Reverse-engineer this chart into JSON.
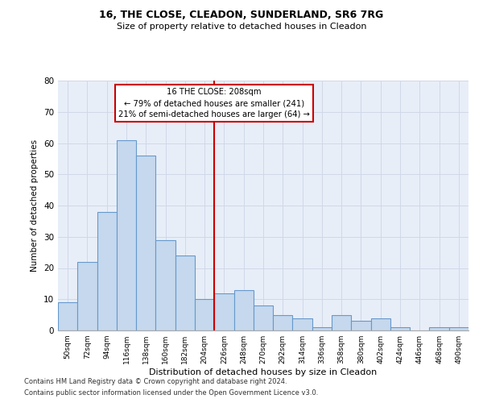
{
  "title1": "16, THE CLOSE, CLEADON, SUNDERLAND, SR6 7RG",
  "title2": "Size of property relative to detached houses in Cleadon",
  "xlabel": "Distribution of detached houses by size in Cleadon",
  "ylabel": "Number of detached properties",
  "categories": [
    "50sqm",
    "72sqm",
    "94sqm",
    "116sqm",
    "138sqm",
    "160sqm",
    "182sqm",
    "204sqm",
    "226sqm",
    "248sqm",
    "270sqm",
    "292sqm",
    "314sqm",
    "336sqm",
    "358sqm",
    "380sqm",
    "402sqm",
    "424sqm",
    "446sqm",
    "468sqm",
    "490sqm"
  ],
  "values": [
    9,
    22,
    38,
    61,
    56,
    29,
    24,
    10,
    12,
    13,
    8,
    5,
    4,
    1,
    5,
    3,
    4,
    1,
    0,
    1,
    1
  ],
  "bar_color": "#c5d8ed",
  "bar_edge_color": "#6699cc",
  "vline_x": 7.5,
  "vline_color": "#cc0000",
  "annotation_line1": "16 THE CLOSE: 208sqm",
  "annotation_line2": "← 79% of detached houses are smaller (241)",
  "annotation_line3": "21% of semi-detached houses are larger (64) →",
  "annotation_box_color": "#ffffff",
  "annotation_box_edge_color": "#cc0000",
  "ylim": [
    0,
    80
  ],
  "yticks": [
    0,
    10,
    20,
    30,
    40,
    50,
    60,
    70,
    80
  ],
  "grid_color": "#d0d8e8",
  "background_color": "#e8eef8",
  "footer1": "Contains HM Land Registry data © Crown copyright and database right 2024.",
  "footer2": "Contains public sector information licensed under the Open Government Licence v3.0."
}
